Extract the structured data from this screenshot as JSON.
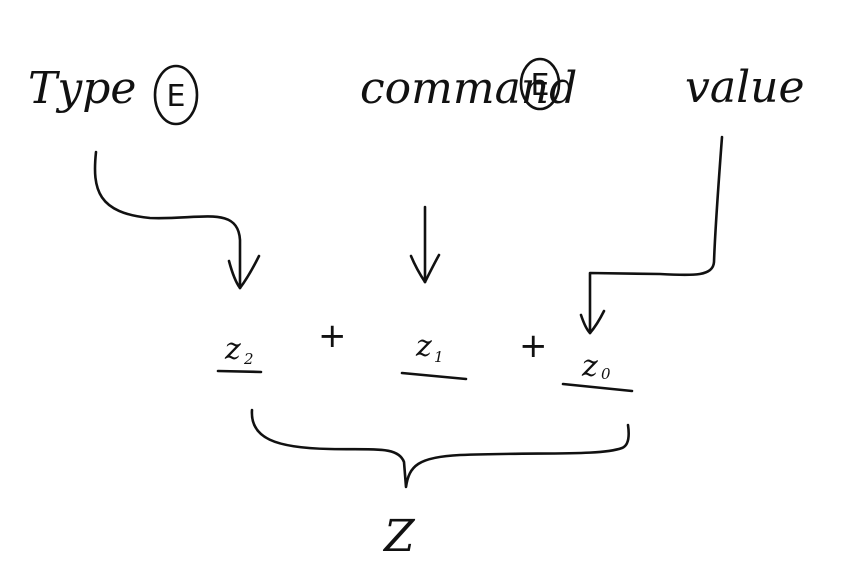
{
  "inputs": [
    {
      "text": "Type",
      "marker": "E"
    },
    {
      "text": "command",
      "marker": "E"
    },
    {
      "text": "value",
      "marker": ""
    }
  ],
  "terms": [
    {
      "base": "z",
      "sub": "2"
    },
    {
      "base": "z",
      "sub": "1"
    },
    {
      "base": "z",
      "sub": "0"
    }
  ],
  "operators": [
    "+",
    "+"
  ],
  "result": "Z"
}
